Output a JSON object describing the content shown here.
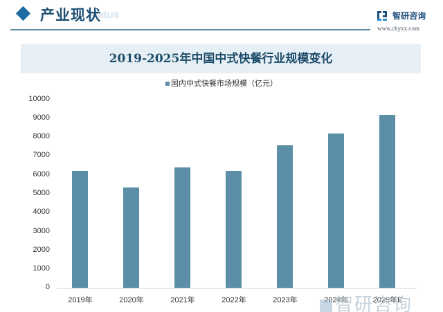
{
  "header": {
    "section_title": "产业现状",
    "section_subtitle": "status",
    "brand_name": "智研咨询",
    "brand_url": "www.chyxx.com",
    "accent_color": "#1f6aa3"
  },
  "watermark": {
    "text": "智研咨询"
  },
  "chart_data": {
    "type": "bar",
    "title": "2019-2025年中国中式快餐行业规模变化",
    "legend": [
      "国内中式快餐市场规模（亿元）"
    ],
    "legend_position": "top",
    "categories": [
      "2019年",
      "2020年",
      "2021年",
      "2022年",
      "2023年",
      "2024年",
      "2025年E"
    ],
    "series": [
      {
        "name": "国内中式快餐市场规模（亿元）",
        "values": [
          6200,
          5300,
          6380,
          6200,
          7550,
          8170,
          9150
        ],
        "color": "#5b8fa8"
      }
    ],
    "xlabel": "",
    "ylabel": "",
    "ylim": [
      0,
      10000
    ],
    "yticks": [
      "10000",
      "9000",
      "8000",
      "7000",
      "6000",
      "5000",
      "4000",
      "3000",
      "2000",
      "1000",
      "0"
    ],
    "grid": false
  }
}
